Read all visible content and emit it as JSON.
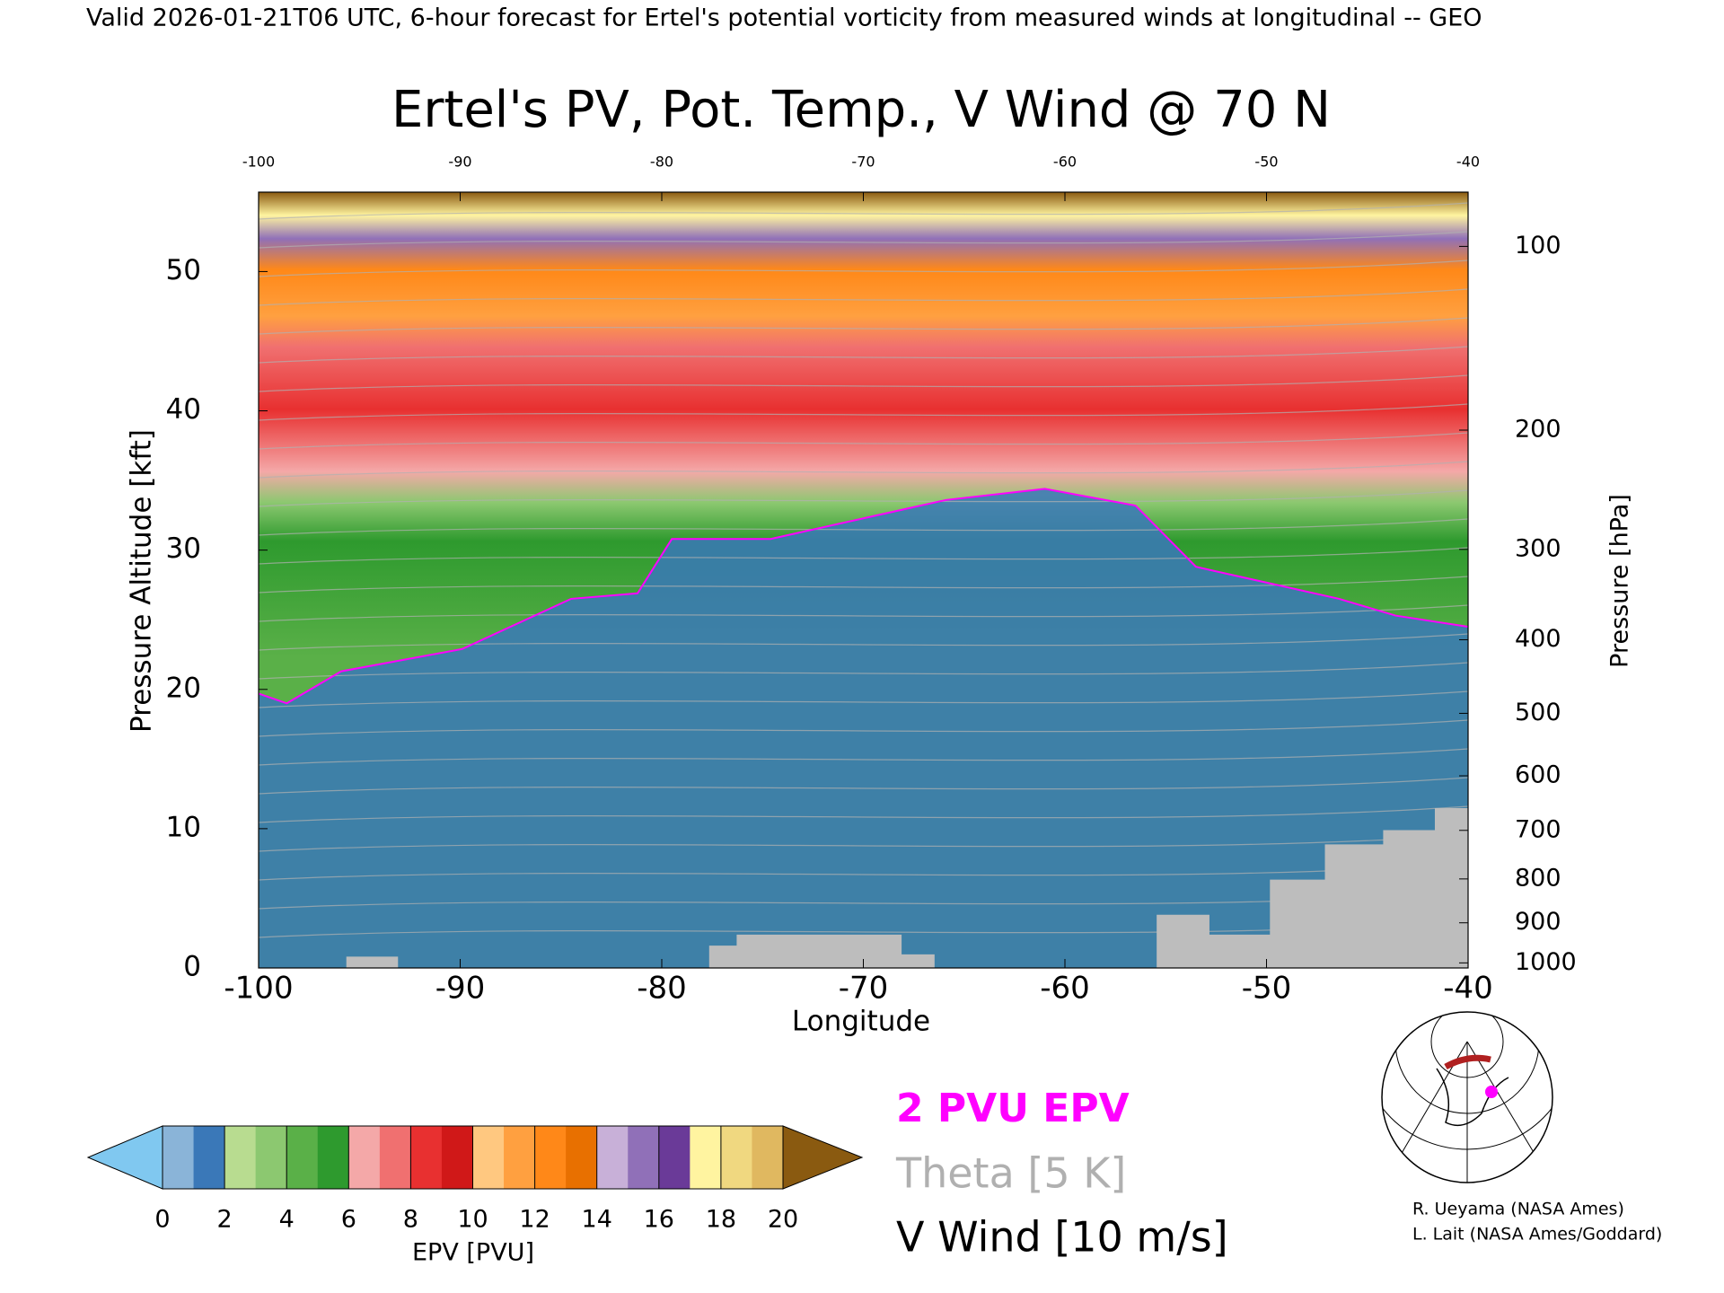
{
  "chart_data": {
    "type": "cross-section",
    "header": "Valid 2026-01-21T06 UTC, 6-hour forecast for Ertel's potential vorticity from measured winds at longitudinal -- GEO",
    "title": "Ertel's PV, Pot. Temp., V Wind @ 70 N",
    "xlabel": "Longitude",
    "ylabel": "Pressure Altitude [kft]",
    "y2label": "Pressure [hPa]",
    "xlim": [
      -100,
      -40
    ],
    "xticks": [
      -100,
      -90,
      -80,
      -70,
      -60,
      -50,
      -40
    ],
    "ylim": [
      0,
      55.7
    ],
    "yticks": [
      0,
      10,
      20,
      30,
      40,
      50
    ],
    "y2scale": "pressure-altitude",
    "y2ticks": [
      100,
      200,
      300,
      400,
      500,
      600,
      700,
      800,
      900,
      1000
    ],
    "colorbar": {
      "label": "EPV [PVU]",
      "ticks": [
        0,
        2,
        4,
        6,
        8,
        10,
        12,
        14,
        16,
        18,
        20
      ],
      "colors": [
        "#8ab4d8",
        "#3a78b8",
        "#b8dc90",
        "#8cc870",
        "#5ab048",
        "#2e9a2e",
        "#f4a8a8",
        "#f07070",
        "#e83030",
        "#d01818",
        "#ffc880",
        "#ffa040",
        "#ff8818",
        "#e87000",
        "#c8b0d8",
        "#9070b8",
        "#6a3a98",
        "#fff4a0",
        "#f0d880",
        "#e0b860"
      ],
      "under_color": "#80c8f0",
      "over_color": "#8a5a10"
    },
    "series": [
      {
        "name": "2 PVU EPV",
        "color": "#ff00ff",
        "x": [
          -100,
          -98.6,
          -95.9,
          -89.9,
          -84.5,
          -81.2,
          -79.5,
          -74.6,
          -65.9,
          -61,
          -56.5,
          -53.5,
          -46.4,
          -43.6,
          -40
        ],
        "values": [
          19.7,
          19,
          21.3,
          22.9,
          26.5,
          26.9,
          30.8,
          30.8,
          33.6,
          34.4,
          33.2,
          28.8,
          26.5,
          25.3,
          24.5
        ]
      },
      {
        "name": "Theta [5 K]",
        "color": "#b0b0b0"
      },
      {
        "name": "V Wind [10 m/s]",
        "color": "#000000"
      }
    ],
    "credits": [
      "R. Ueyama (NASA Ames)",
      "L. Lait (NASA Ames/Goddard)"
    ]
  }
}
